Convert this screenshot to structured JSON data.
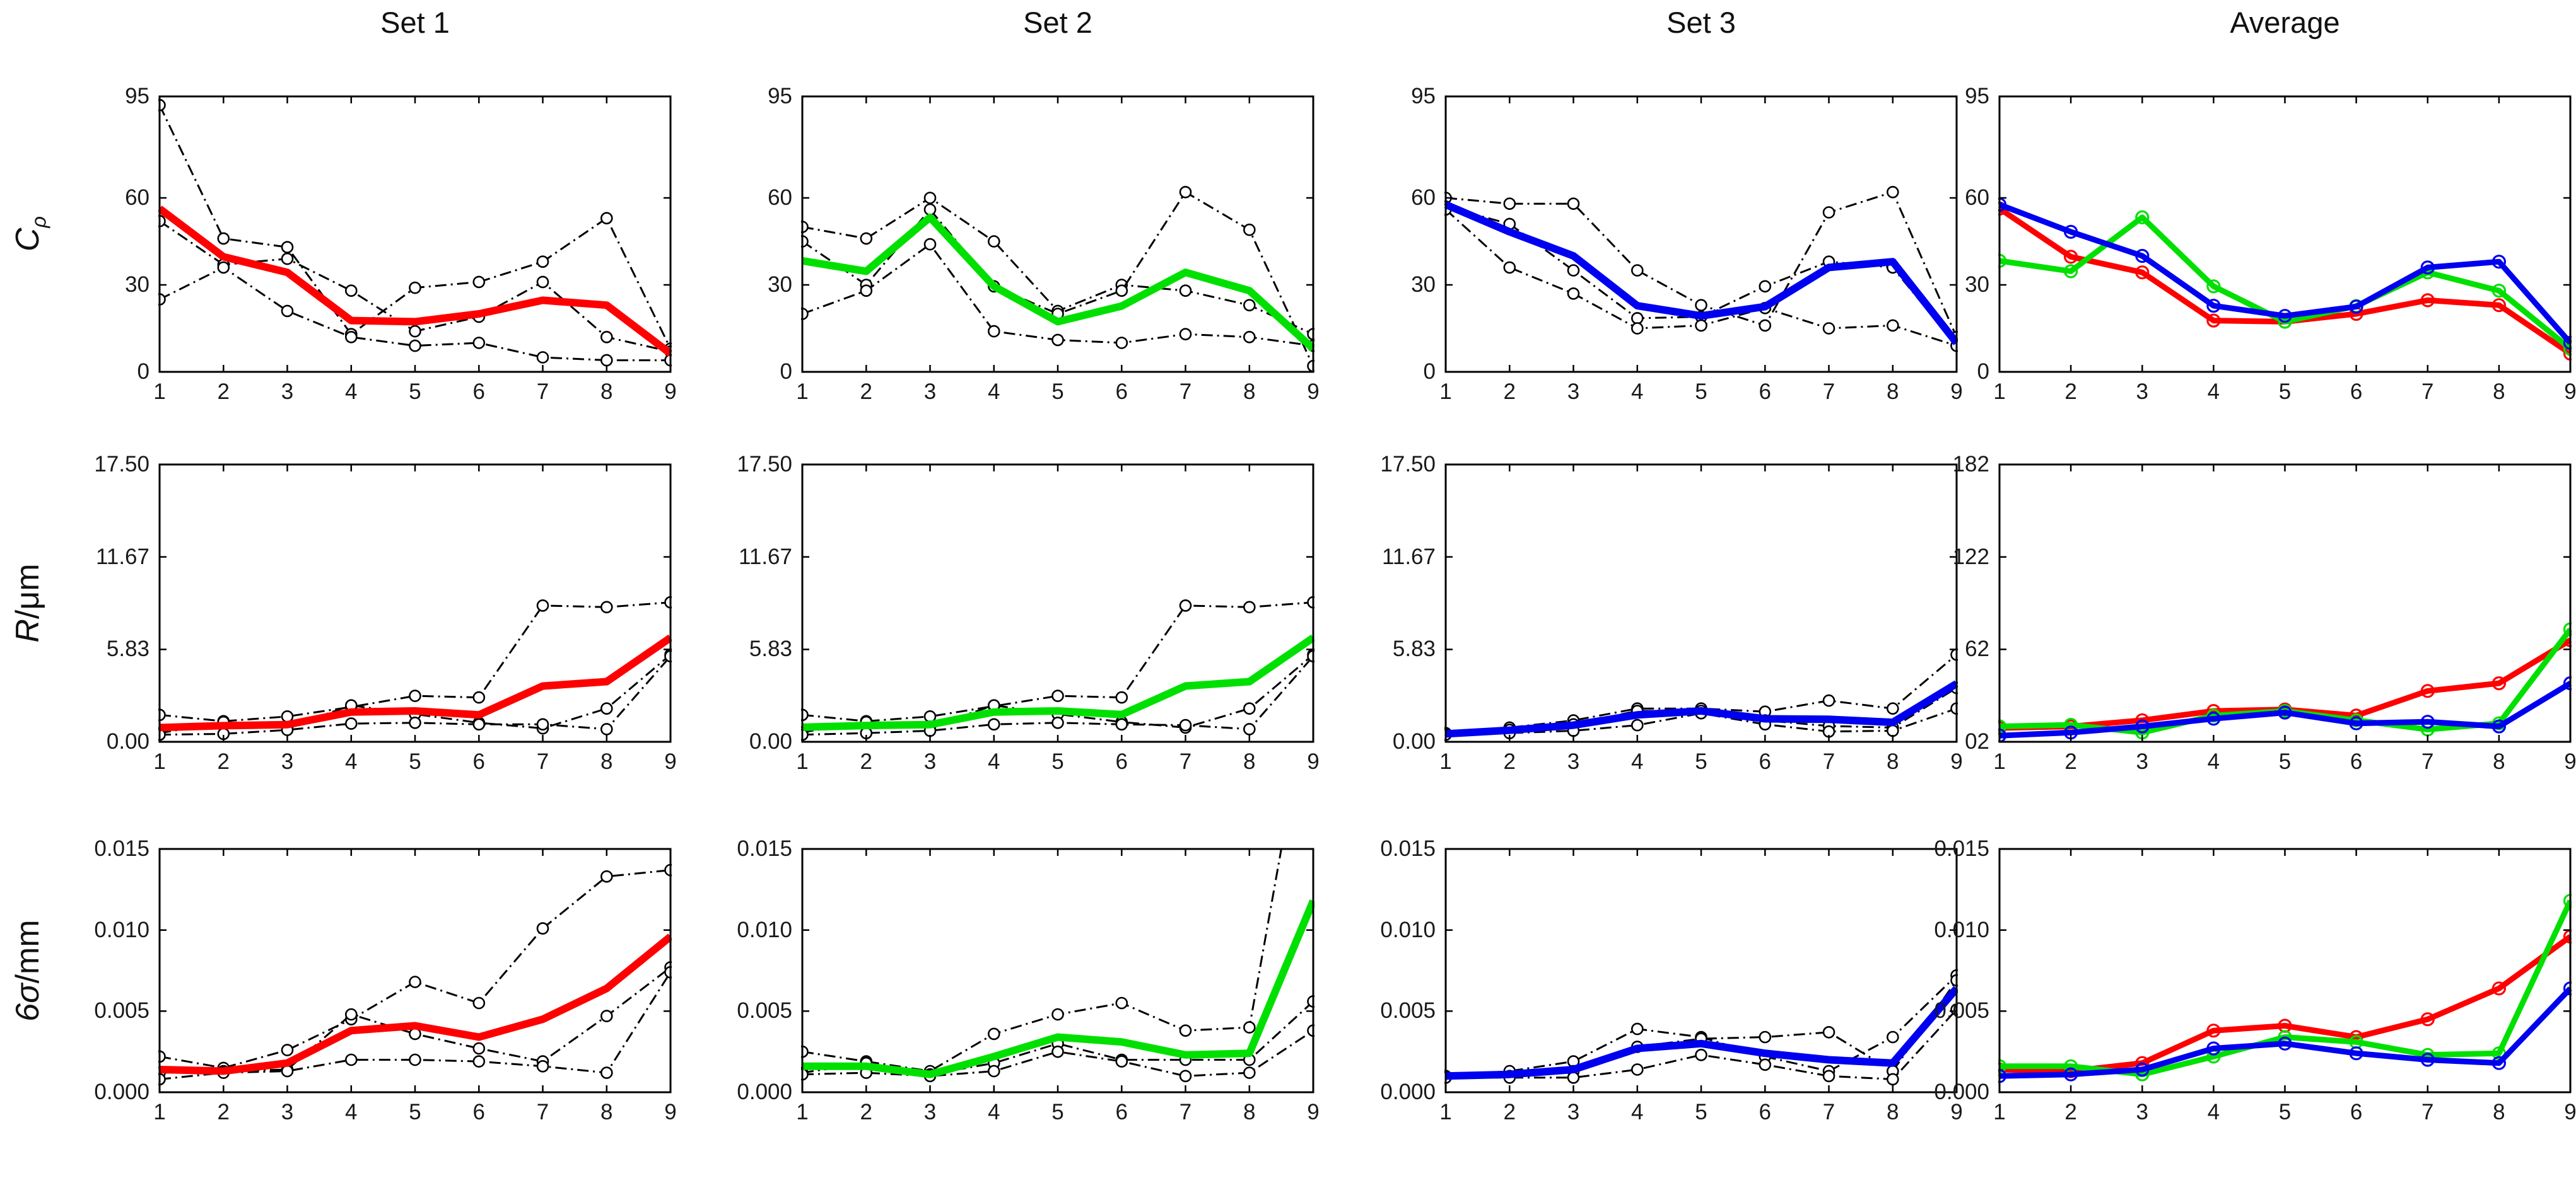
{
  "figure": {
    "columns": [
      "Set 1",
      "Set 2",
      "Set 3",
      "Average"
    ],
    "row_labels": [
      {
        "base": "C",
        "sub": "ρ",
        "suffix": ""
      },
      {
        "base": "R",
        "sub": "",
        "suffix": "/μm"
      },
      {
        "base": "6σ",
        "sub": "",
        "suffix": "/mm"
      }
    ],
    "colors": {
      "set1": "#ff0000",
      "set2": "#00e000",
      "set3": "#0000f0",
      "runs": "#000000"
    }
  },
  "chart_data": [
    {
      "name": "cp-set1",
      "type": "line",
      "row": 0,
      "col": 0,
      "title": "Set 1",
      "ylim": [
        0,
        95
      ],
      "x": [
        1,
        2,
        3,
        4,
        5,
        6,
        7,
        8,
        9
      ],
      "ytick_values": [
        0,
        30,
        60,
        95
      ],
      "ytick_labels": [
        "0",
        "30",
        "60",
        "95"
      ],
      "series": [
        {
          "name": "run-1",
          "type": "run",
          "color": "#000000",
          "values": [
            92,
            46,
            43,
            13,
            29,
            31,
            38,
            53,
            8
          ]
        },
        {
          "name": "run-2",
          "type": "run",
          "color": "#000000",
          "values": [
            52,
            37,
            39,
            28,
            14,
            19,
            31,
            12,
            7
          ]
        },
        {
          "name": "run-3",
          "type": "run",
          "color": "#000000",
          "values": [
            25,
            36,
            21,
            12,
            9,
            10,
            5,
            4,
            4
          ]
        },
        {
          "name": "mean",
          "type": "mean",
          "color": "#ff0000",
          "values": [
            56.3,
            39.7,
            34.3,
            17.7,
            17.3,
            20,
            24.7,
            23,
            6.3
          ]
        }
      ]
    },
    {
      "name": "cp-set2",
      "type": "line",
      "row": 0,
      "col": 1,
      "title": "Set 2",
      "ylim": [
        0,
        95
      ],
      "x": [
        1,
        2,
        3,
        4,
        5,
        6,
        7,
        8,
        9
      ],
      "ytick_values": [
        0,
        30,
        60,
        95
      ],
      "ytick_labels": [
        "0",
        "30",
        "60",
        "95"
      ],
      "series": [
        {
          "name": "run-1",
          "type": "run",
          "color": "#000000",
          "values": [
            50,
            46,
            60,
            45,
            21,
            30,
            28,
            23,
            13
          ]
        },
        {
          "name": "run-2",
          "type": "run",
          "color": "#000000",
          "values": [
            45,
            30,
            56,
            29.5,
            20,
            28,
            62,
            49,
            2
          ]
        },
        {
          "name": "run-3",
          "type": "run",
          "color": "#000000",
          "values": [
            20,
            28,
            44,
            14,
            11,
            10,
            13,
            12,
            9
          ]
        },
        {
          "name": "mean",
          "type": "mean",
          "color": "#00e000",
          "values": [
            38.3,
            34.7,
            53.3,
            29.5,
            17.3,
            22.7,
            34.3,
            28,
            8
          ]
        }
      ]
    },
    {
      "name": "cp-set3",
      "type": "line",
      "row": 0,
      "col": 2,
      "title": "Set 3",
      "ylim": [
        0,
        95
      ],
      "x": [
        1,
        2,
        3,
        4,
        5,
        6,
        7,
        8,
        9
      ],
      "ytick_values": [
        0,
        30,
        60,
        95
      ],
      "ytick_labels": [
        "0",
        "30",
        "60",
        "95"
      ],
      "series": [
        {
          "name": "run-1",
          "type": "run",
          "color": "#000000",
          "values": [
            60,
            58,
            58,
            35,
            23,
            16,
            55,
            62,
            12
          ]
        },
        {
          "name": "run-2",
          "type": "run",
          "color": "#000000",
          "values": [
            57,
            51,
            35,
            18.5,
            19,
            29.5,
            38,
            36,
            9
          ]
        },
        {
          "name": "run-3",
          "type": "run",
          "color": "#000000",
          "values": [
            56,
            36,
            27,
            15,
            16,
            22,
            15,
            16,
            9
          ]
        },
        {
          "name": "mean",
          "type": "mean",
          "color": "#0000f0",
          "values": [
            57.7,
            48.3,
            40,
            22.8,
            19.3,
            22.5,
            36,
            38,
            10
          ]
        }
      ]
    },
    {
      "name": "cp-average",
      "type": "line",
      "row": 0,
      "col": 3,
      "title": "Average",
      "ylim": [
        0,
        95
      ],
      "x": [
        1,
        2,
        3,
        4,
        5,
        6,
        7,
        8,
        9
      ],
      "ytick_values": [
        0,
        30,
        60,
        95
      ],
      "ytick_labels": [
        "0",
        "30",
        "60",
        "95"
      ],
      "series": [
        {
          "name": "set1-mean",
          "type": "avg",
          "color": "#ff0000",
          "values": [
            56.3,
            39.7,
            34.3,
            17.7,
            17.3,
            20,
            24.7,
            23,
            6.3
          ]
        },
        {
          "name": "set2-mean",
          "type": "avg",
          "color": "#00e000",
          "values": [
            38.3,
            34.7,
            53.3,
            29.5,
            17.3,
            22.7,
            34.3,
            28,
            8
          ]
        },
        {
          "name": "set3-mean",
          "type": "avg",
          "color": "#0000f0",
          "values": [
            57.7,
            48.3,
            40,
            22.8,
            19.3,
            22.5,
            36,
            38,
            10
          ]
        }
      ]
    },
    {
      "name": "r-set1",
      "type": "line",
      "row": 1,
      "col": 0,
      "title": "Set 1",
      "ylim": [
        0,
        17.5
      ],
      "x": [
        1,
        2,
        3,
        4,
        5,
        6,
        7,
        8,
        9
      ],
      "ytick_values": [
        0,
        5.83,
        11.67,
        17.5
      ],
      "ytick_labels": [
        "0.00",
        "5.83",
        "11.67",
        "17.50"
      ],
      "series": [
        {
          "name": "run-1",
          "type": "run",
          "color": "#000000",
          "values": [
            1.7,
            1.3,
            1.6,
            2.2,
            2.9,
            2.8,
            8.6,
            8.5,
            8.8
          ]
        },
        {
          "name": "run-2",
          "type": "run",
          "color": "#000000",
          "values": [
            0.55,
            1.25,
            0.9,
            2.3,
            1.75,
            1.2,
            0.85,
            2.1,
            5.5
          ]
        },
        {
          "name": "run-3",
          "type": "run",
          "color": "#000000",
          "values": [
            0.45,
            0.5,
            0.75,
            1.15,
            1.2,
            1.1,
            1.1,
            0.8,
            5.4
          ]
        },
        {
          "name": "mean",
          "type": "mean",
          "color": "#ff0000",
          "values": [
            0.9,
            1.02,
            1.08,
            1.88,
            1.95,
            1.7,
            3.52,
            3.8,
            6.57
          ]
        }
      ]
    },
    {
      "name": "r-set2",
      "type": "line",
      "row": 1,
      "col": 1,
      "title": "Set 2",
      "ylim": [
        0,
        17.5
      ],
      "x": [
        1,
        2,
        3,
        4,
        5,
        6,
        7,
        8,
        9
      ],
      "ytick_values": [
        0,
        5.83,
        11.67,
        17.5
      ],
      "ytick_labels": [
        "0.00",
        "5.83",
        "11.67",
        "17.50"
      ],
      "series": [
        {
          "name": "run-1",
          "type": "run",
          "color": "#000000",
          "values": [
            1.7,
            1.3,
            1.6,
            2.25,
            2.9,
            2.8,
            8.6,
            8.5,
            8.8
          ]
        },
        {
          "name": "run-2",
          "type": "run",
          "color": "#000000",
          "values": [
            0.6,
            1.25,
            0.95,
            2.3,
            1.75,
            1.25,
            0.9,
            2.1,
            5.5
          ]
        },
        {
          "name": "run-3",
          "type": "run",
          "color": "#000000",
          "values": [
            0.45,
            0.55,
            0.7,
            1.1,
            1.2,
            1.1,
            1.05,
            0.8,
            5.4
          ]
        },
        {
          "name": "mean",
          "type": "mean",
          "color": "#00e000",
          "values": [
            0.92,
            1.03,
            1.08,
            1.88,
            1.95,
            1.72,
            3.52,
            3.8,
            6.57
          ]
        }
      ]
    },
    {
      "name": "r-set3",
      "type": "line",
      "row": 1,
      "col": 2,
      "title": "Set 3",
      "ylim": [
        0,
        17.5
      ],
      "x": [
        1,
        2,
        3,
        4,
        5,
        6,
        7,
        8,
        9
      ],
      "ytick_values": [
        0,
        5.83,
        11.67,
        17.5
      ],
      "ytick_labels": [
        "0.00",
        "5.83",
        "11.67",
        "17.50"
      ],
      "series": [
        {
          "name": "run-1",
          "type": "run",
          "color": "#000000",
          "values": [
            0.55,
            0.9,
            1.35,
            2.1,
            2.1,
            1.9,
            2.6,
            2.1,
            5.5
          ]
        },
        {
          "name": "run-2",
          "type": "run",
          "color": "#000000",
          "values": [
            0.5,
            0.75,
            1.1,
            1.95,
            1.95,
            1.35,
            1.0,
            0.9,
            3.4
          ]
        },
        {
          "name": "run-3",
          "type": "run",
          "color": "#000000",
          "values": [
            0.45,
            0.55,
            0.7,
            1.05,
            1.8,
            1.1,
            0.65,
            0.7,
            2.1
          ]
        },
        {
          "name": "mean",
          "type": "mean",
          "color": "#0000f0",
          "values": [
            0.5,
            0.73,
            1.05,
            1.7,
            1.95,
            1.45,
            1.42,
            1.23,
            3.67
          ]
        }
      ]
    },
    {
      "name": "r-average",
      "type": "line",
      "row": 1,
      "col": 3,
      "title": "Average",
      "ylim": [
        2,
        182
      ],
      "x": [
        1,
        2,
        3,
        4,
        5,
        6,
        7,
        8,
        9
      ],
      "ytick_values": [
        2,
        62,
        122,
        182
      ],
      "ytick_labels": [
        "02",
        "62",
        "122",
        "182"
      ],
      "series": [
        {
          "name": "set1-mean",
          "type": "avg",
          "color": "#ff0000",
          "values": [
            11,
            12,
            16,
            22,
            23,
            19,
            35,
            40,
            68
          ]
        },
        {
          "name": "set2-mean",
          "type": "avg",
          "color": "#00e000",
          "values": [
            12,
            13,
            8,
            19,
            22,
            16,
            10,
            14,
            75
          ]
        },
        {
          "name": "set3-mean",
          "type": "avg",
          "color": "#0000f0",
          "values": [
            6,
            8,
            12,
            17,
            21,
            14,
            15,
            12,
            40
          ]
        }
      ]
    },
    {
      "name": "sigma-set1",
      "type": "line",
      "row": 2,
      "col": 0,
      "title": "Set 1",
      "ylim": [
        0,
        0.015
      ],
      "x": [
        1,
        2,
        3,
        4,
        5,
        6,
        7,
        8,
        9
      ],
      "ytick_values": [
        0,
        0.005,
        0.01,
        0.015
      ],
      "ytick_labels": [
        "0.000",
        "0.005",
        "0.010",
        "0.015"
      ],
      "series": [
        {
          "name": "run-1",
          "type": "run",
          "color": "#000000",
          "values": [
            0.0022,
            0.0015,
            0.0026,
            0.0045,
            0.0068,
            0.0055,
            0.0101,
            0.0133,
            0.0137
          ]
        },
        {
          "name": "run-2",
          "type": "run",
          "color": "#000000",
          "values": [
            0.0012,
            0.0013,
            0.0014,
            0.0048,
            0.0036,
            0.0027,
            0.0019,
            0.0047,
            0.0077
          ]
        },
        {
          "name": "run-3",
          "type": "run",
          "color": "#000000",
          "values": [
            0.0008,
            0.0012,
            0.0013,
            0.002,
            0.002,
            0.0019,
            0.0016,
            0.0012,
            0.0074
          ]
        },
        {
          "name": "mean",
          "type": "mean",
          "color": "#ff0000",
          "values": [
            0.0014,
            0.0013,
            0.0018,
            0.0038,
            0.0041,
            0.0034,
            0.0045,
            0.0064,
            0.0096
          ]
        }
      ]
    },
    {
      "name": "sigma-set2",
      "type": "line",
      "row": 2,
      "col": 1,
      "title": "Set 2",
      "ylim": [
        0,
        0.015
      ],
      "x": [
        1,
        2,
        3,
        4,
        5,
        6,
        7,
        8,
        9
      ],
      "ytick_values": [
        0,
        0.005,
        0.01,
        0.015
      ],
      "ytick_labels": [
        "0.000",
        "0.005",
        "0.010",
        "0.015"
      ],
      "series": [
        {
          "name": "run-1",
          "type": "run",
          "color": "#000000",
          "values": [
            0.0025,
            0.0019,
            0.0013,
            0.0036,
            0.0048,
            0.0055,
            0.0038,
            0.004,
            0.026
          ]
        },
        {
          "name": "run-2",
          "type": "run",
          "color": "#000000",
          "values": [
            0.0012,
            0.0018,
            0.0011,
            0.0018,
            0.003,
            0.002,
            0.002,
            0.002,
            0.0056
          ]
        },
        {
          "name": "run-3",
          "type": "run",
          "color": "#000000",
          "values": [
            0.0011,
            0.0012,
            0.001,
            0.0013,
            0.0025,
            0.0019,
            0.001,
            0.0012,
            0.0038
          ]
        },
        {
          "name": "mean",
          "type": "mean",
          "color": "#00e000",
          "values": [
            0.0016,
            0.0016,
            0.0011,
            0.0022,
            0.0034,
            0.0031,
            0.0023,
            0.0024,
            0.0118
          ]
        }
      ]
    },
    {
      "name": "sigma-set3",
      "type": "line",
      "row": 2,
      "col": 2,
      "title": "Set 3",
      "ylim": [
        0,
        0.015
      ],
      "x": [
        1,
        2,
        3,
        4,
        5,
        6,
        7,
        8,
        9
      ],
      "ytick_values": [
        0,
        0.005,
        0.01,
        0.015
      ],
      "ytick_labels": [
        "0.000",
        "0.005",
        "0.010",
        "0.015"
      ],
      "series": [
        {
          "name": "run-1",
          "type": "run",
          "color": "#000000",
          "values": [
            0.001,
            0.0013,
            0.0019,
            0.0039,
            0.0034,
            0.0022,
            0.0013,
            0.0034,
            0.0072
          ]
        },
        {
          "name": "run-2",
          "type": "run",
          "color": "#000000",
          "values": [
            0.001,
            0.001,
            0.0013,
            0.0028,
            0.0033,
            0.0034,
            0.0037,
            0.0013,
            0.0069
          ]
        },
        {
          "name": "run-3",
          "type": "run",
          "color": "#000000",
          "values": [
            0.0009,
            0.0009,
            0.0009,
            0.0014,
            0.0023,
            0.0017,
            0.001,
            0.0008,
            0.0051
          ]
        },
        {
          "name": "mean",
          "type": "mean",
          "color": "#0000f0",
          "values": [
            0.001,
            0.0011,
            0.0014,
            0.0027,
            0.003,
            0.0024,
            0.002,
            0.0018,
            0.0064
          ]
        }
      ]
    },
    {
      "name": "sigma-average",
      "type": "line",
      "row": 2,
      "col": 3,
      "title": "Average",
      "ylim": [
        0,
        0.015
      ],
      "x": [
        1,
        2,
        3,
        4,
        5,
        6,
        7,
        8,
        9
      ],
      "ytick_values": [
        0,
        0.005,
        0.01,
        0.015
      ],
      "ytick_labels": [
        "0.000",
        "0.005",
        "0.010",
        "0.015"
      ],
      "series": [
        {
          "name": "set1-mean",
          "type": "avg",
          "color": "#ff0000",
          "values": [
            0.0014,
            0.0013,
            0.0018,
            0.0038,
            0.0041,
            0.0034,
            0.0045,
            0.0064,
            0.0096
          ]
        },
        {
          "name": "set2-mean",
          "type": "avg",
          "color": "#00e000",
          "values": [
            0.0016,
            0.0016,
            0.0011,
            0.0022,
            0.0034,
            0.0031,
            0.0023,
            0.0024,
            0.0118
          ]
        },
        {
          "name": "set3-mean",
          "type": "avg",
          "color": "#0000f0",
          "values": [
            0.001,
            0.0011,
            0.0014,
            0.0027,
            0.003,
            0.0024,
            0.002,
            0.0018,
            0.0064
          ]
        }
      ]
    }
  ]
}
